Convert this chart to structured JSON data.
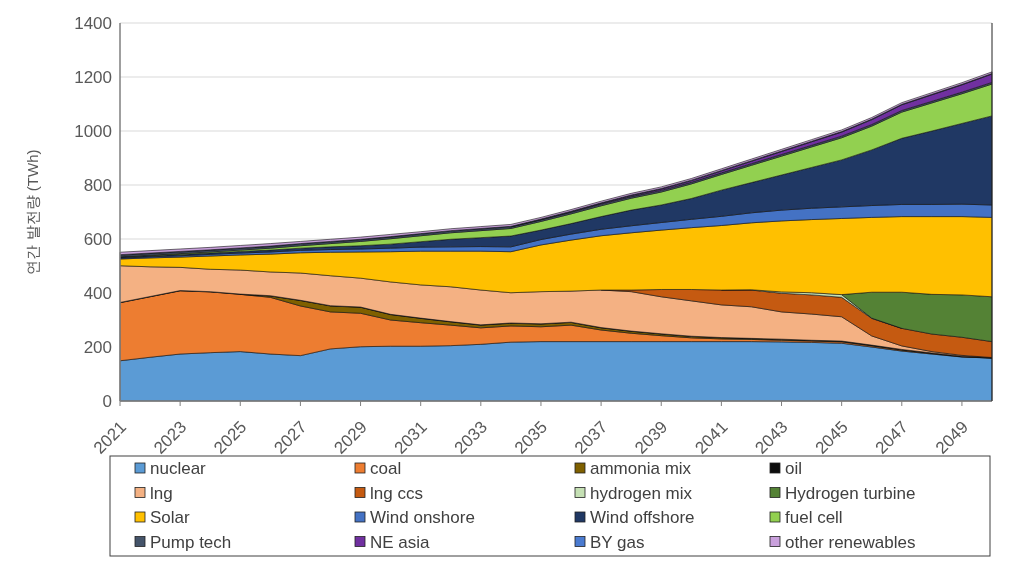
{
  "chart_data": {
    "type": "area",
    "stacked": true,
    "ylabel": "연간 발전량 (TWh)",
    "x": [
      2021,
      2022,
      2023,
      2024,
      2025,
      2026,
      2027,
      2028,
      2029,
      2030,
      2031,
      2032,
      2033,
      2034,
      2035,
      2036,
      2037,
      2038,
      2039,
      2040,
      2041,
      2042,
      2043,
      2044,
      2045,
      2046,
      2047,
      2048,
      2049,
      2050
    ],
    "xlim": [
      2021,
      2050
    ],
    "xticks": [
      2021,
      2023,
      2025,
      2027,
      2029,
      2031,
      2033,
      2035,
      2037,
      2039,
      2041,
      2043,
      2045,
      2047,
      2049
    ],
    "ylim": [
      0,
      1400
    ],
    "yticks": [
      0,
      200,
      400,
      600,
      800,
      1000,
      1200,
      1400
    ],
    "grid": "y",
    "legend": "bottom",
    "series": [
      {
        "name": "nuclear",
        "color": "#5b9bd5",
        "values": [
          149,
          162,
          174,
          179,
          183,
          174,
          168,
          193,
          201,
          203,
          203,
          205,
          210,
          218,
          220,
          220,
          220,
          220,
          220,
          220,
          220,
          220,
          219,
          217,
          214,
          200,
          185,
          174,
          163,
          159
        ]
      },
      {
        "name": "coal",
        "color": "#ed7d31",
        "values": [
          215,
          224,
          234,
          225,
          212,
          210,
          184,
          137,
          124,
          97,
          87,
          76,
          61,
          60,
          55,
          61,
          43,
          31,
          22,
          14,
          10,
          8,
          6,
          5,
          5,
          4,
          3,
          2,
          1,
          0
        ]
      },
      {
        "name": "ammonia mix",
        "color": "#7f6000",
        "values": [
          null,
          null,
          null,
          null,
          0,
          5,
          20,
          22,
          22,
          20,
          16,
          12,
          10,
          10,
          10,
          10,
          8,
          7,
          6,
          5,
          4,
          3,
          3,
          2,
          2,
          2,
          2,
          1,
          1,
          1
        ]
      },
      {
        "name": "oil",
        "color": "#0d0d0d",
        "values": [
          1,
          1,
          1,
          1,
          1,
          1,
          1,
          1,
          1,
          1,
          1,
          1,
          1,
          1,
          1,
          1,
          1,
          1,
          1,
          1,
          1,
          1,
          1,
          1,
          1,
          1,
          1,
          1,
          1,
          1
        ]
      },
      {
        "name": "lng",
        "color": "#f4b183",
        "values": [
          136,
          110,
          86,
          83,
          89,
          88,
          101,
          111,
          107,
          120,
          123,
          129,
          129,
          112,
          119,
          115,
          139,
          146,
          137,
          131,
          121,
          117,
          101,
          97,
          90,
          34,
          13,
          5,
          3,
          0
        ]
      },
      {
        "name": "lng ccs",
        "color": "#c55a11",
        "values": [
          null,
          null,
          null,
          null,
          null,
          null,
          null,
          null,
          null,
          null,
          null,
          null,
          null,
          null,
          null,
          null,
          0,
          6,
          27,
          42,
          55,
          62,
          69,
          71,
          72,
          65,
          65,
          65,
          67,
          59
        ]
      },
      {
        "name": "hydrogen mix",
        "color": "#c5e0b4",
        "values": [
          null,
          null,
          null,
          null,
          null,
          null,
          null,
          null,
          null,
          null,
          null,
          null,
          null,
          null,
          null,
          null,
          null,
          null,
          null,
          null,
          0,
          1,
          5,
          8,
          10,
          1,
          0,
          null,
          null,
          null
        ]
      },
      {
        "name": "Hydrogen turbine",
        "color": "#548235",
        "values": [
          null,
          null,
          null,
          null,
          null,
          null,
          null,
          null,
          null,
          null,
          null,
          null,
          null,
          null,
          null,
          null,
          null,
          null,
          null,
          null,
          null,
          null,
          null,
          null,
          0,
          96,
          134,
          147,
          157,
          166
        ]
      },
      {
        "name": "Solar",
        "color": "#ffc000",
        "values": [
          25,
          33,
          38,
          49,
          56,
          66,
          75,
          87,
          97,
          112,
          125,
          132,
          144,
          152,
          173,
          189,
          201,
          212,
          220,
          229,
          239,
          248,
          263,
          271,
          282,
          277,
          280,
          288,
          290,
          294
        ]
      },
      {
        "name": "Wind onshore",
        "color": "#4472c4",
        "values": [
          3,
          4,
          5,
          6,
          7,
          8,
          9,
          10,
          11,
          13,
          15,
          16,
          17,
          18,
          20,
          22,
          24,
          26,
          28,
          31,
          34,
          37,
          40,
          42,
          43,
          44,
          45,
          45,
          46,
          46
        ]
      },
      {
        "name": "Wind offshore",
        "color": "#203864",
        "values": [
          4,
          4,
          5,
          5,
          6,
          7,
          8,
          10,
          12,
          15,
          20,
          28,
          33,
          40,
          35,
          39,
          47,
          58,
          65,
          77,
          97,
          112,
          130,
          151,
          174,
          206,
          245,
          272,
          299,
          330
        ]
      },
      {
        "name": "fuel cell",
        "color": "#92d050",
        "values": [
          1,
          2,
          3,
          4,
          5,
          7,
          9,
          12,
          16,
          20,
          22,
          24,
          26,
          28,
          32,
          36,
          40,
          44,
          48,
          54,
          58,
          64,
          70,
          76,
          82,
          88,
          97,
          104,
          110,
          118
        ]
      },
      {
        "name": "Pump tech",
        "color": "#44546a",
        "values": [
          6,
          6,
          6,
          6,
          6,
          6,
          6,
          6,
          6,
          6,
          6,
          6,
          6,
          6,
          6,
          6,
          6,
          6,
          6,
          6,
          6,
          6,
          6,
          6,
          6,
          6,
          6,
          6,
          6,
          6
        ]
      },
      {
        "name": "NE asia",
        "color": "#7030a0",
        "values": [
          null,
          null,
          null,
          null,
          null,
          null,
          null,
          null,
          null,
          null,
          null,
          null,
          null,
          0,
          1,
          2,
          3,
          4,
          5,
          6,
          7,
          9,
          11,
          13,
          15,
          18,
          21,
          24,
          27,
          31
        ]
      },
      {
        "name": "BY gas",
        "color": "#4a7bd0",
        "values": [
          2,
          2,
          2,
          2,
          2,
          2,
          2,
          2,
          2,
          2,
          2,
          2,
          2,
          2,
          2,
          2,
          2,
          2,
          2,
          2,
          2,
          2,
          2,
          2,
          2,
          2,
          2,
          2,
          2,
          2
        ]
      },
      {
        "name": "other renewables",
        "color": "#c9a0dc",
        "values": [
          9,
          9,
          9,
          9,
          9,
          9,
          8,
          8,
          8,
          8,
          7,
          7,
          7,
          7,
          6,
          6,
          6,
          6,
          6,
          6,
          6,
          6,
          6,
          6,
          6,
          6,
          6,
          6,
          6,
          6
        ]
      }
    ]
  }
}
